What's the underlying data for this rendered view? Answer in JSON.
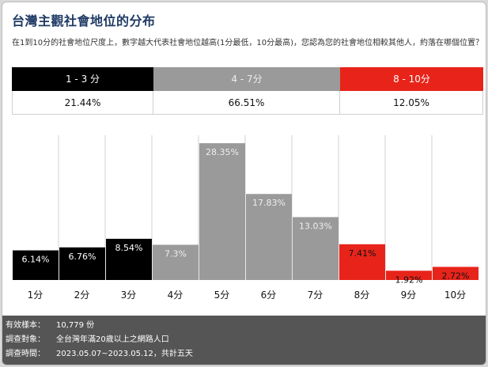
{
  "title": "台灣主觀社會地位的分布",
  "subtitle": "在1到10分的社會地位尺度上，數字越大代表社會地位越高(1分最低，10分最高)，您認為您的社會地位相較其他人，約落在哪個位置？",
  "summary": [
    {
      "label": "1 - 3 分",
      "value": "21.44%",
      "color": "#000000"
    },
    {
      "label": "4 - 7分",
      "value": "66.51%",
      "color": "#9a9a9a"
    },
    {
      "label": "8 - 10分",
      "value": "12.05%",
      "color": "#e8241a"
    }
  ],
  "chart_data": {
    "type": "bar",
    "categories": [
      "1分",
      "2分",
      "3分",
      "4分",
      "5分",
      "6分",
      "7分",
      "8分",
      "9分",
      "10分"
    ],
    "values": [
      6.14,
      6.76,
      8.54,
      7.3,
      28.35,
      17.83,
      13.03,
      7.41,
      1.92,
      2.72
    ],
    "data_labels": [
      "6.14%",
      "6.76%",
      "8.54%",
      "7.3%",
      "28.35%",
      "17.83%",
      "13.03%",
      "7.41%",
      "1.92%",
      "2.72%"
    ],
    "colors": [
      "#000000",
      "#000000",
      "#000000",
      "#9a9a9a",
      "#9a9a9a",
      "#9a9a9a",
      "#9a9a9a",
      "#e8241a",
      "#e8241a",
      "#e8241a"
    ],
    "label_colors": [
      "#ffffff",
      "#ffffff",
      "#ffffff",
      "#eeeeee",
      "#eeeeee",
      "#eeeeee",
      "#eeeeee",
      "#111111",
      "#111111",
      "#111111"
    ],
    "ylim": [
      0,
      30
    ],
    "grid": true,
    "title": "",
    "xlabel": "",
    "ylabel": ""
  },
  "footer": {
    "sample_label": "有效樣本：",
    "sample_value": "10,779 份",
    "target_label": "調查對象：",
    "target_value": "全台灣年滿20歲以上之網路人口",
    "period_label": "調查時間：",
    "period_value": "2023.05.07~2023.05.12，共計五天"
  }
}
